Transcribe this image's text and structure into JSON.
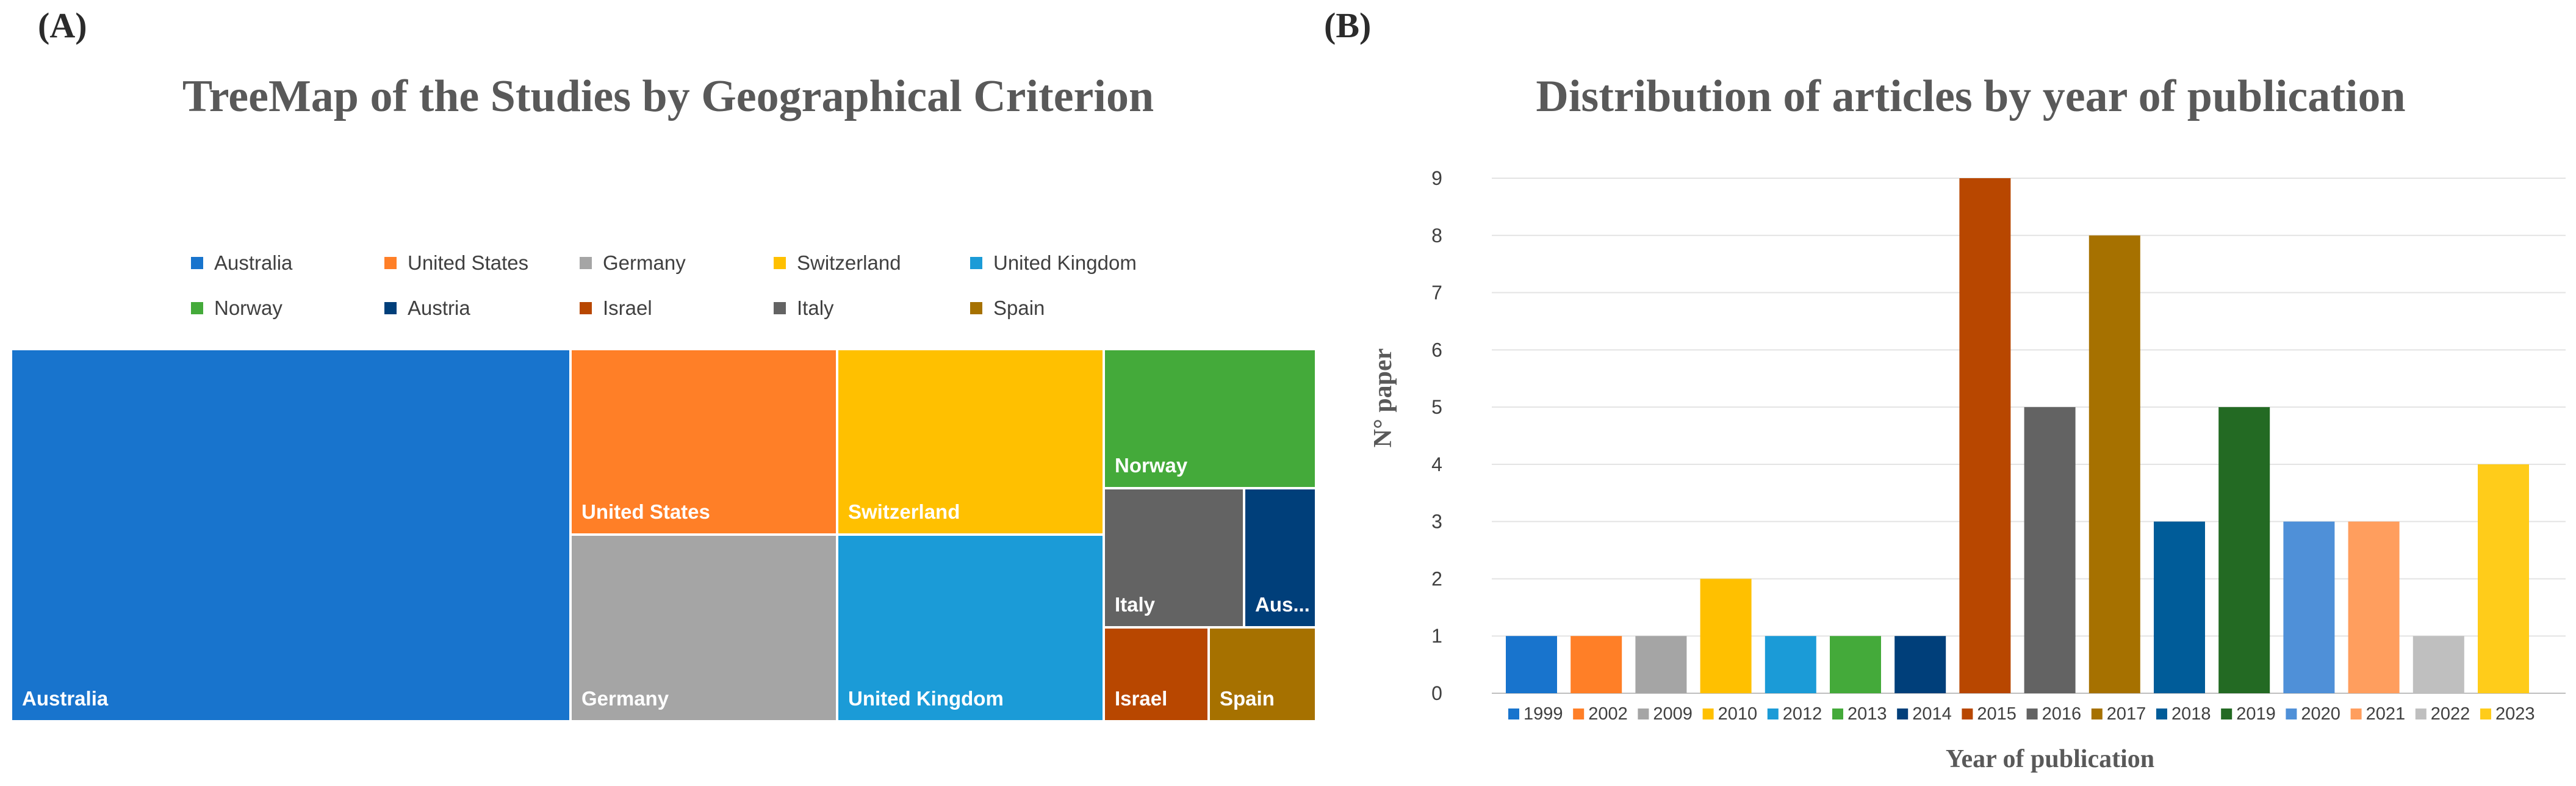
{
  "panel_a": {
    "label": "(A)",
    "chart_data": {
      "type": "treemap",
      "title": "TreeMap of the Studies by Geographical Criterion",
      "legend": [
        "Australia",
        "United States",
        "Germany",
        "Switzerland",
        "United Kingdom",
        "Norway",
        "Austria",
        "Israel",
        "Italy",
        "Spain"
      ],
      "colors": {
        "Australia": "#1874CD",
        "United States": "#FF7F27",
        "Germany": "#A5A5A5",
        "Switzerland": "#FFC000",
        "United Kingdom": "#1B9BD7",
        "Norway": "#44AA3A",
        "Austria": "#003F7A",
        "Israel": "#B84700",
        "Italy": "#636363",
        "Spain": "#A67100"
      },
      "tiles": [
        {
          "name": "Australia",
          "label": "Australia"
        },
        {
          "name": "United States",
          "label": "United States"
        },
        {
          "name": "Switzerland",
          "label": "Switzerland"
        },
        {
          "name": "Norway",
          "label": "Norway"
        },
        {
          "name": "Germany",
          "label": "Germany"
        },
        {
          "name": "United Kingdom",
          "label": "United Kingdom"
        },
        {
          "name": "Italy",
          "label": "Italy"
        },
        {
          "name": "Austria",
          "label": "Aus..."
        },
        {
          "name": "Israel",
          "label": "Israel"
        },
        {
          "name": "Spain",
          "label": "Spain"
        }
      ]
    }
  },
  "panel_b": {
    "label": "(B)",
    "chart_data": {
      "type": "bar",
      "title": "Distribution of articles by year of publication",
      "xlabel": "Year of publication",
      "ylabel": "N° paper",
      "ylim": [
        0,
        9
      ],
      "yticks": [
        "0",
        "1",
        "2",
        "3",
        "4",
        "5",
        "6",
        "7",
        "8",
        "9"
      ],
      "grid": true,
      "categories": [
        "1999",
        "2002",
        "2009",
        "2010",
        "2012",
        "2013",
        "2014",
        "2015",
        "2016",
        "2017",
        "2018",
        "2019",
        "2020",
        "2021",
        "2022",
        "2023"
      ],
      "values": [
        1,
        1,
        1,
        2,
        1,
        1,
        1,
        9,
        5,
        8,
        3,
        5,
        3,
        3,
        1,
        4
      ],
      "colors": [
        "#1874CD",
        "#FF7F27",
        "#A5A5A5",
        "#FFC000",
        "#1B9BD7",
        "#44AA3A",
        "#003F7A",
        "#B84700",
        "#636363",
        "#A67100",
        "#005C99",
        "#236A23",
        "#4F90D8",
        "#FF9E5E",
        "#BFBFBF",
        "#FFCC1A"
      ]
    }
  }
}
